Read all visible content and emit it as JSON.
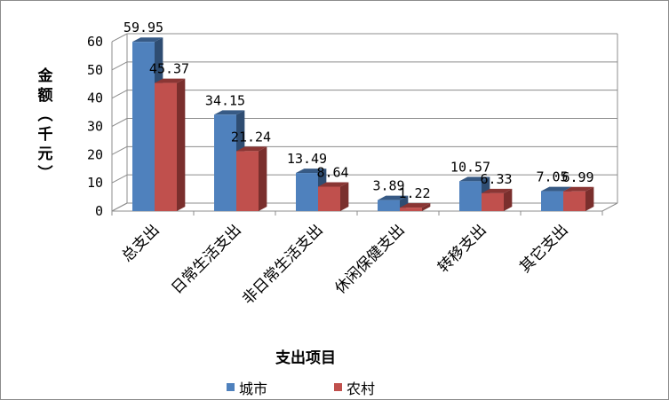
{
  "chart_data": {
    "type": "bar",
    "categories": [
      "总支出",
      "日常生活支出",
      "非日常生活支出",
      "休闲保健支出",
      "转移支出",
      "其它支出"
    ],
    "series": [
      {
        "name": "城市",
        "values": [
          59.95,
          34.15,
          13.49,
          3.89,
          10.57,
          7.05
        ],
        "labels": [
          "59.95",
          "34.15",
          "13.49",
          "3.89",
          "10.57",
          "7.05"
        ]
      },
      {
        "name": "农村",
        "values": [
          45.37,
          21.24,
          8.64,
          1.22,
          6.33,
          6.99
        ],
        "labels": [
          "45.37",
          "21.24",
          "8.64",
          "1.22",
          "6.33",
          "6.99"
        ]
      }
    ],
    "xlabel": "支出项目",
    "ylabel": "金额（千元）",
    "ylim": [
      0,
      60
    ],
    "yticks": [
      0,
      10,
      20,
      30,
      40,
      50,
      60
    ],
    "grid": true,
    "legend": "bottom",
    "colors": {
      "series_front": [
        "#4f81bd",
        "#c0504d"
      ],
      "series_top": [
        "#375a85",
        "#8a3634"
      ],
      "series_side": [
        "#2f4d72",
        "#7a2f2d"
      ],
      "grid": "#8c8c8c",
      "axis": "#8c8c8c"
    }
  }
}
